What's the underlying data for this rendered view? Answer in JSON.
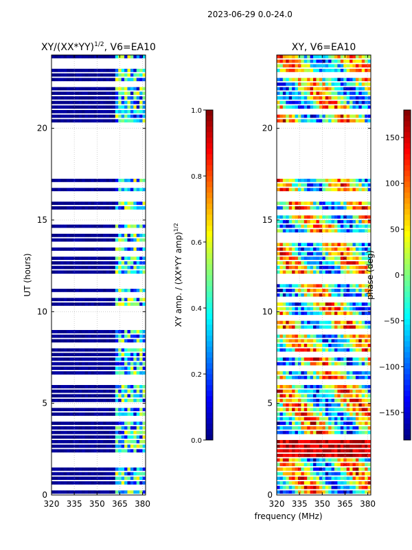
{
  "figure": {
    "suptitle": "2023-06-29 0.0-24.0",
    "shared_xlabel": "frequency (MHz)"
  },
  "chart_data": [
    {
      "type": "heatmap",
      "title": "XY/(XX*YY)",
      "title_sup": "1/2",
      "title_suffix": ", V6=EA10",
      "xlabel": "",
      "ylabel": "UT (hours)",
      "xlim": [
        320,
        382
      ],
      "ylim": [
        0,
        24
      ],
      "xticks": [
        320,
        335,
        350,
        365,
        380
      ],
      "yticks": [
        0,
        5,
        10,
        15,
        20
      ],
      "grid": true,
      "colormap": "jet",
      "data_gaps_hours": [
        [
          20.3,
          24.0,
          "partial rows"
        ],
        [
          17.3,
          20.3,
          "blank"
        ]
      ],
      "colorbar": {
        "label": "XY amp. / (XX*YY amp)",
        "label_sup": "1/2",
        "range": [
          0.0,
          1.0
        ],
        "ticks": [
          "0.0",
          "0.2",
          "0.4",
          "0.6",
          "0.8",
          "1.0"
        ]
      }
    },
    {
      "type": "heatmap",
      "title": "XY, V6=EA10",
      "xlabel": "frequency (MHz)",
      "ylabel": "",
      "xlim": [
        320,
        382
      ],
      "ylim": [
        0,
        24
      ],
      "xticks": [
        320,
        335,
        350,
        365,
        380
      ],
      "yticks": [
        0,
        5,
        10,
        15,
        20
      ],
      "grid": true,
      "colormap": "jet",
      "colorbar": {
        "label": "phase (deg)",
        "range": [
          -180,
          180
        ],
        "ticks": [
          "−150",
          "−100",
          "−50",
          "0",
          "50",
          "100",
          "150"
        ]
      }
    }
  ]
}
